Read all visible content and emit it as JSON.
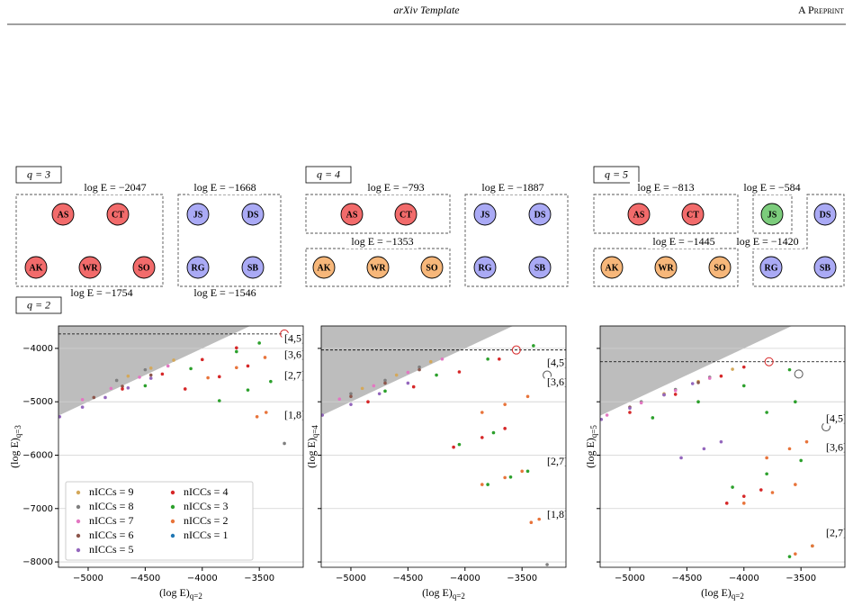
{
  "header": {
    "title": "arXiv Template",
    "right": "A Preprint"
  },
  "diagrams": [
    {
      "label": "q = 3",
      "groups": [
        {
          "energy": "log E = −2047",
          "nodes": [
            {
              "id": "AS",
              "color": "#f26b6b"
            },
            {
              "id": "CT",
              "color": "#f26b6b"
            },
            {
              "id": "AK",
              "color": "#f26b6b"
            },
            {
              "id": "WR",
              "color": "#f26b6b"
            },
            {
              "id": "SO",
              "color": "#f26b6b"
            }
          ]
        },
        {
          "energy": "log E = −1668",
          "nodes": [
            {
              "id": "JS",
              "color": "#aaaaf5"
            },
            {
              "id": "DS",
              "color": "#aaaaf5"
            },
            {
              "id": "RG",
              "color": "#aaaaf5"
            },
            {
              "id": "SB",
              "color": "#aaaaf5"
            }
          ]
        }
      ]
    },
    {
      "label": "q = 4",
      "groups": [
        {
          "energy": "log E = −793",
          "nodes": [
            {
              "id": "AS",
              "color": "#f26b6b"
            },
            {
              "id": "CT",
              "color": "#f26b6b"
            }
          ]
        },
        {
          "energy": "log E = −1887",
          "nodes": [
            {
              "id": "JS",
              "color": "#aaaaf5"
            },
            {
              "id": "DS",
              "color": "#aaaaf5"
            },
            {
              "id": "RG",
              "color": "#aaaaf5"
            },
            {
              "id": "SB",
              "color": "#aaaaf5"
            }
          ]
        },
        {
          "energy": "log E = −1353",
          "nodes": [
            {
              "id": "AK",
              "color": "#f7b77a"
            },
            {
              "id": "WR",
              "color": "#f7b77a"
            },
            {
              "id": "SO",
              "color": "#f7b77a"
            }
          ]
        }
      ]
    },
    {
      "label": "q = 5",
      "groups": [
        {
          "energy": "log E = −813",
          "nodes": [
            {
              "id": "AS",
              "color": "#f26b6b"
            },
            {
              "id": "CT",
              "color": "#f26b6b"
            }
          ]
        },
        {
          "energy": "log E = −584",
          "nodes": [
            {
              "id": "JS",
              "color": "#7ccc7c"
            }
          ]
        },
        {
          "energy": "log E = −1420",
          "nodes": [
            {
              "id": "DS",
              "color": "#aaaaf5"
            },
            {
              "id": "RG",
              "color": "#aaaaf5"
            },
            {
              "id": "SB",
              "color": "#aaaaf5"
            }
          ]
        },
        {
          "energy": "log E = −1445",
          "nodes": [
            {
              "id": "AK",
              "color": "#f7b77a"
            },
            {
              "id": "WR",
              "color": "#f7b77a"
            },
            {
              "id": "SO",
              "color": "#f7b77a"
            }
          ]
        }
      ]
    }
  ],
  "q2": {
    "label": "q = 2",
    "energies": [
      "log E = −1754",
      "log E = −1546"
    ]
  },
  "chart_data": [
    {
      "type": "scatter",
      "xlabel": {
        "main": "(log E)",
        "sub": "q=2"
      },
      "ylabel": {
        "main": "(log E)",
        "sub": "q=3"
      },
      "xlim": [
        -5260,
        -3115
      ],
      "ylim": [
        -8100,
        -3580
      ],
      "xticks": [
        {
          "value": -5000,
          "label": "−5000"
        },
        {
          "value": -4500,
          "label": "−4500"
        },
        {
          "value": -4000,
          "label": "−4000"
        },
        {
          "value": -3500,
          "label": "−3500"
        }
      ],
      "yticks": [
        {
          "value": -8000,
          "label": "−8000"
        },
        {
          "value": -7000,
          "label": "−7000"
        },
        {
          "value": -6000,
          "label": "−6000"
        },
        {
          "value": -5000,
          "label": "−5000"
        },
        {
          "value": -4000,
          "label": "−4000"
        }
      ],
      "grid": true,
      "legend": "lower left",
      "reference_line": -3730,
      "best": {
        "x": -3280,
        "y": -3730
      },
      "others": {
        "x": [],
        "y": []
      },
      "annotation_color": "#e8743b",
      "annotations": [
        {
          "text": "[4,5]",
          "x": -3190,
          "y": -3830
        },
        {
          "text": "[3,6]",
          "x": -3190,
          "y": -4130
        },
        {
          "text": "[2,7]",
          "x": -3190,
          "y": -4520
        },
        {
          "text": "[1,8]",
          "x": -3190,
          "y": -5260
        }
      ],
      "series": [
        {
          "name": "nICCs = 9",
          "color": "#d4a85a",
          "x": [
            -4650,
            -4450,
            -4250
          ],
          "values": [
            -4520,
            -4370,
            -4220
          ]
        },
        {
          "name": "nICCs = 8",
          "color": "#7f7f7f",
          "x": [
            -4750,
            -4500,
            -3280
          ],
          "values": [
            -4600,
            -4400,
            -5780
          ]
        },
        {
          "name": "nICCs = 7",
          "color": "#e377c2",
          "x": [
            -5050,
            -4800,
            -4550,
            -4300
          ],
          "values": [
            -4960,
            -4750,
            -4540,
            -4330
          ]
        },
        {
          "name": "nICCs = 6",
          "color": "#8c564b",
          "x": [
            -4950,
            -4700,
            -4450
          ],
          "values": [
            -4920,
            -4710,
            -4500
          ]
        },
        {
          "name": "nICCs = 5",
          "color": "#9467bd",
          "x": [
            -5250,
            -5050,
            -4850,
            -4650,
            -4450
          ],
          "values": [
            -5280,
            -5100,
            -4920,
            -4740,
            -4560
          ]
        },
        {
          "name": "nICCs = 4",
          "color": "#d62728",
          "x": [
            -4700,
            -4350,
            -4000,
            -3700,
            -4150,
            -3850,
            -3600
          ],
          "values": [
            -4760,
            -4480,
            -4210,
            -3990,
            -4760,
            -4530,
            -4330
          ]
        },
        {
          "name": "nICCs = 3",
          "color": "#2ca02c",
          "x": [
            -4500,
            -4100,
            -3700,
            -3500,
            -3850,
            -3600,
            -3400
          ],
          "values": [
            -4700,
            -4380,
            -4060,
            -3900,
            -4980,
            -4780,
            -4620
          ]
        },
        {
          "name": "nICCs = 2",
          "color": "#e8743b",
          "x": [
            -3950,
            -3700,
            -3450,
            -3520,
            -3440
          ],
          "values": [
            -4550,
            -4360,
            -4170,
            -5280,
            -5200
          ]
        },
        {
          "name": "nICCs = 1",
          "color": "#1f77b4",
          "x": [],
          "values": []
        }
      ]
    },
    {
      "type": "scatter",
      "xlabel": {
        "main": "(log E)",
        "sub": "q=2"
      },
      "ylabel": {
        "main": "(log E)",
        "sub": "q=4"
      },
      "xlim": [
        -5260,
        -3115
      ],
      "ylim": [
        -8100,
        -3580
      ],
      "xticks": [
        {
          "value": -5000,
          "label": "−5000"
        },
        {
          "value": -4500,
          "label": "−4500"
        },
        {
          "value": -4000,
          "label": "−4000"
        },
        {
          "value": -3500,
          "label": "−3500"
        }
      ],
      "yticks": [
        -8000,
        -7000,
        -6000,
        -5000,
        -4000
      ],
      "grid": true,
      "reference_line": -4030,
      "best": {
        "x": -3550,
        "y": -4030
      },
      "others": {
        "x": [
          -3280
        ],
        "y": [
          -4500
        ]
      },
      "annotation_color": "#e8743b",
      "annotations": [
        {
          "text": "[4,5]",
          "x": -3190,
          "y": -4280
        },
        {
          "text": "[3,6]",
          "x": -3190,
          "y": -4650
        },
        {
          "text": "[2,7]",
          "x": -3190,
          "y": -6130
        },
        {
          "text": "[1,8]",
          "x": -3190,
          "y": -7130
        }
      ],
      "series": [
        {
          "name": "nICCs = 9",
          "color": "#d4a85a",
          "x": [
            -4900,
            -4600,
            -4300
          ],
          "values": [
            -4750,
            -4500,
            -4250
          ]
        },
        {
          "name": "nICCs = 8",
          "color": "#7f7f7f",
          "x": [
            -5000,
            -4700,
            -4400,
            -3280
          ],
          "values": [
            -4850,
            -4600,
            -4350,
            -8050
          ]
        },
        {
          "name": "nICCs = 7",
          "color": "#e377c2",
          "x": [
            -5100,
            -4800,
            -4500,
            -4200
          ],
          "values": [
            -4950,
            -4700,
            -4450,
            -4200
          ]
        },
        {
          "name": "nICCs = 6",
          "color": "#8c564b",
          "x": [
            -5000,
            -4700,
            -4400
          ],
          "values": [
            -4900,
            -4650,
            -4400
          ]
        },
        {
          "name": "nICCs = 5",
          "color": "#9467bd",
          "x": [
            -5250,
            -5000,
            -4750,
            -4500
          ],
          "values": [
            -5250,
            -5050,
            -4850,
            -4650
          ]
        },
        {
          "name": "nICCs = 4",
          "color": "#d62728",
          "x": [
            -4850,
            -4450,
            -4050,
            -3700,
            -4100,
            -3850,
            -3650
          ],
          "values": [
            -5000,
            -4720,
            -4440,
            -4200,
            -5850,
            -5670,
            -5500
          ]
        },
        {
          "name": "nICCs = 3",
          "color": "#2ca02c",
          "x": [
            -4700,
            -4250,
            -3800,
            -3400,
            -3800,
            -3600,
            -3450,
            -4050,
            -3750
          ],
          "values": [
            -4800,
            -4500,
            -4200,
            -3950,
            -6550,
            -6410,
            -6300,
            -5800,
            -5580
          ]
        },
        {
          "name": "nICCs = 2",
          "color": "#e8743b",
          "x": [
            -3850,
            -3650,
            -3450,
            -3850,
            -3650,
            -3500,
            -3420,
            -3350
          ],
          "values": [
            -5200,
            -5050,
            -4900,
            -6550,
            -6420,
            -6300,
            -7260,
            -7200
          ]
        },
        {
          "name": "nICCs = 1",
          "color": "#1f77b4",
          "x": [],
          "values": []
        }
      ]
    },
    {
      "type": "scatter",
      "xlabel": {
        "main": "(log E)",
        "sub": "q=2"
      },
      "ylabel": {
        "main": "(log E)",
        "sub": "q=5"
      },
      "xlim": [
        -5260,
        -3115
      ],
      "ylim": [
        -8100,
        -3580
      ],
      "xticks": [
        {
          "value": -5000,
          "label": "−5000"
        },
        {
          "value": -4500,
          "label": "−4500"
        },
        {
          "value": -4000,
          "label": "−4000"
        },
        {
          "value": -3500,
          "label": "−3500"
        }
      ],
      "yticks": [
        -8000,
        -7000,
        -6000,
        -5000,
        -4000
      ],
      "grid": true,
      "reference_line": -4250,
      "best": {
        "x": -3780,
        "y": -4250
      },
      "others": {
        "x": [
          -3520,
          -3280
        ],
        "y": [
          -4480,
          -5470
        ]
      },
      "annotation_color": "#e8743b",
      "annotations": [
        {
          "text": "[4,5]",
          "x": -3190,
          "y": -5330
        },
        {
          "text": "[3,6]",
          "x": -3190,
          "y": -5870
        },
        {
          "text": "[2,7]",
          "x": -3190,
          "y": -7470
        }
      ],
      "series": [
        {
          "name": "nICCs = 9",
          "color": "#d4a85a",
          "x": [
            -4700,
            -4400,
            -4100
          ],
          "values": [
            -4850,
            -4620,
            -4390
          ]
        },
        {
          "name": "nICCs = 8",
          "color": "#7f7f7f",
          "x": [
            -4900,
            -4600,
            -4300
          ],
          "values": [
            -5000,
            -4770,
            -4540
          ]
        },
        {
          "name": "nICCs = 7",
          "color": "#e377c2",
          "x": [
            -5200,
            -4900,
            -4600,
            -4300
          ],
          "values": [
            -5250,
            -5020,
            -4790,
            -4560
          ]
        },
        {
          "name": "nICCs = 6",
          "color": "#8c564b",
          "x": [
            -5000,
            -4700,
            -4400
          ],
          "values": [
            -5100,
            -4870,
            -4640
          ]
        },
        {
          "name": "nICCs = 5",
          "color": "#9467bd",
          "x": [
            -5250,
            -5000,
            -4700,
            -4450,
            -4550,
            -4350,
            -4200
          ],
          "values": [
            -5330,
            -5120,
            -4870,
            -4660,
            -6050,
            -5880,
            -5750
          ]
        },
        {
          "name": "nICCs = 4",
          "color": "#d62728",
          "x": [
            -5000,
            -4600,
            -4200,
            -4000,
            -4150,
            -4000,
            -3850
          ],
          "values": [
            -5200,
            -4860,
            -4520,
            -4350,
            -6900,
            -6770,
            -6650
          ]
        },
        {
          "name": "nICCs = 3",
          "color": "#2ca02c",
          "x": [
            -4800,
            -4400,
            -4000,
            -3600,
            -4100,
            -3800,
            -3500,
            -3600,
            -3400,
            -3800,
            -3550
          ],
          "values": [
            -5300,
            -5000,
            -4700,
            -4400,
            -6600,
            -6350,
            -6100,
            -7900,
            -7700,
            -5200,
            -5000
          ]
        },
        {
          "name": "nICCs = 2",
          "color": "#e8743b",
          "x": [
            -3800,
            -3600,
            -3450,
            -4000,
            -3750,
            -3550,
            -3550,
            -3400
          ],
          "values": [
            -6050,
            -5880,
            -5750,
            -6900,
            -6700,
            -6550,
            -7850,
            -7700
          ]
        },
        {
          "name": "nICCs = 1",
          "color": "#1f77b4",
          "x": [],
          "values": []
        }
      ]
    }
  ]
}
